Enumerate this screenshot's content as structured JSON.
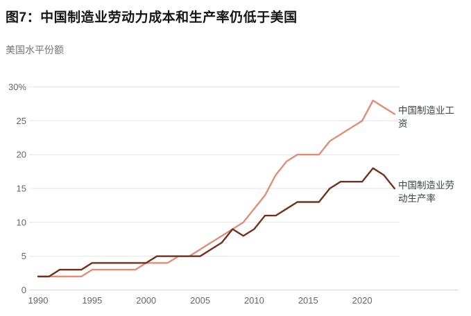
{
  "title": "图7：中国制造业劳动力成本和生产率仍低于美国",
  "subtitle": "美国水平份额",
  "legend": {
    "wages_label": "中国制造业工资",
    "productivity_label": "中国制造业劳动生产率"
  },
  "colors": {
    "wages_line": "#e08d79",
    "productivity_line": "#70301f",
    "gridline": "#e4e4e4",
    "zero_axis": "#d7d7d7",
    "tick_text": "#63666a",
    "title_text": "#141414",
    "subtitle_text": "#757575",
    "legend_text": "#3c4043"
  },
  "chart_data": {
    "type": "line",
    "title": "图7：中国制造业劳动力成本和生产率仍低于美国",
    "ylabel": "美国水平份额",
    "x": [
      1990,
      1991,
      1992,
      1993,
      1994,
      1995,
      1996,
      1997,
      1998,
      1999,
      2000,
      2001,
      2002,
      2003,
      2004,
      2005,
      2006,
      2007,
      2008,
      2009,
      2010,
      2011,
      2012,
      2013,
      2014,
      2015,
      2016,
      2017,
      2018,
      2019,
      2020,
      2021,
      2022,
      2023
    ],
    "series": [
      {
        "name": "中国制造业工资",
        "color": "#e08d79",
        "values": [
          2,
          2,
          2,
          2,
          2,
          3,
          3,
          3,
          3,
          3,
          4,
          4,
          4,
          5,
          5,
          6,
          7,
          8,
          9,
          10,
          12,
          14,
          17,
          19,
          20,
          20,
          20,
          22,
          23,
          24,
          25,
          28,
          27,
          26
        ]
      },
      {
        "name": "中国制造业劳动生产率",
        "color": "#70301f",
        "values": [
          2,
          2,
          3,
          3,
          3,
          4,
          4,
          4,
          4,
          4,
          4,
          5,
          5,
          5,
          5,
          5,
          6,
          7,
          9,
          8,
          9,
          11,
          11,
          12,
          13,
          13,
          13,
          15,
          16,
          16,
          16,
          18,
          17,
          15
        ]
      }
    ],
    "ylim": [
      0,
      30
    ],
    "yticks": [
      0,
      5,
      10,
      15,
      20,
      25,
      30
    ],
    "ytick_labels": [
      "0",
      "5",
      "10",
      "15",
      "20",
      "25",
      "30%"
    ],
    "xticks": [
      1990,
      1995,
      2000,
      2005,
      2010,
      2015,
      2020
    ],
    "grid": "horizontal",
    "legend_position": "right-of-line-ends"
  }
}
